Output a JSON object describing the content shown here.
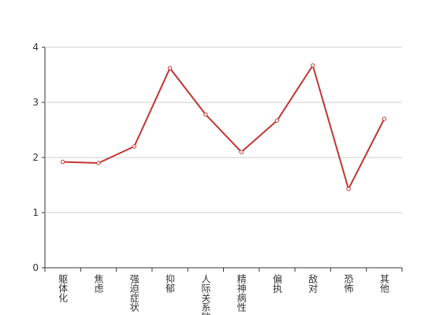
{
  "chart_data": {
    "type": "line",
    "categories": [
      "躯体化",
      "焦虑",
      "强迫症状",
      "抑郁",
      "人际关系敏感",
      "精神病性",
      "偏执",
      "敌对",
      "恐怖",
      "其他"
    ],
    "values": [
      1.92,
      1.9,
      2.2,
      3.62,
      2.78,
      2.1,
      2.67,
      3.67,
      1.43,
      2.7
    ],
    "color": "#c23531",
    "ylim": [
      0,
      4
    ],
    "yticks": [
      0,
      1,
      2,
      3,
      4
    ],
    "grid": true
  }
}
